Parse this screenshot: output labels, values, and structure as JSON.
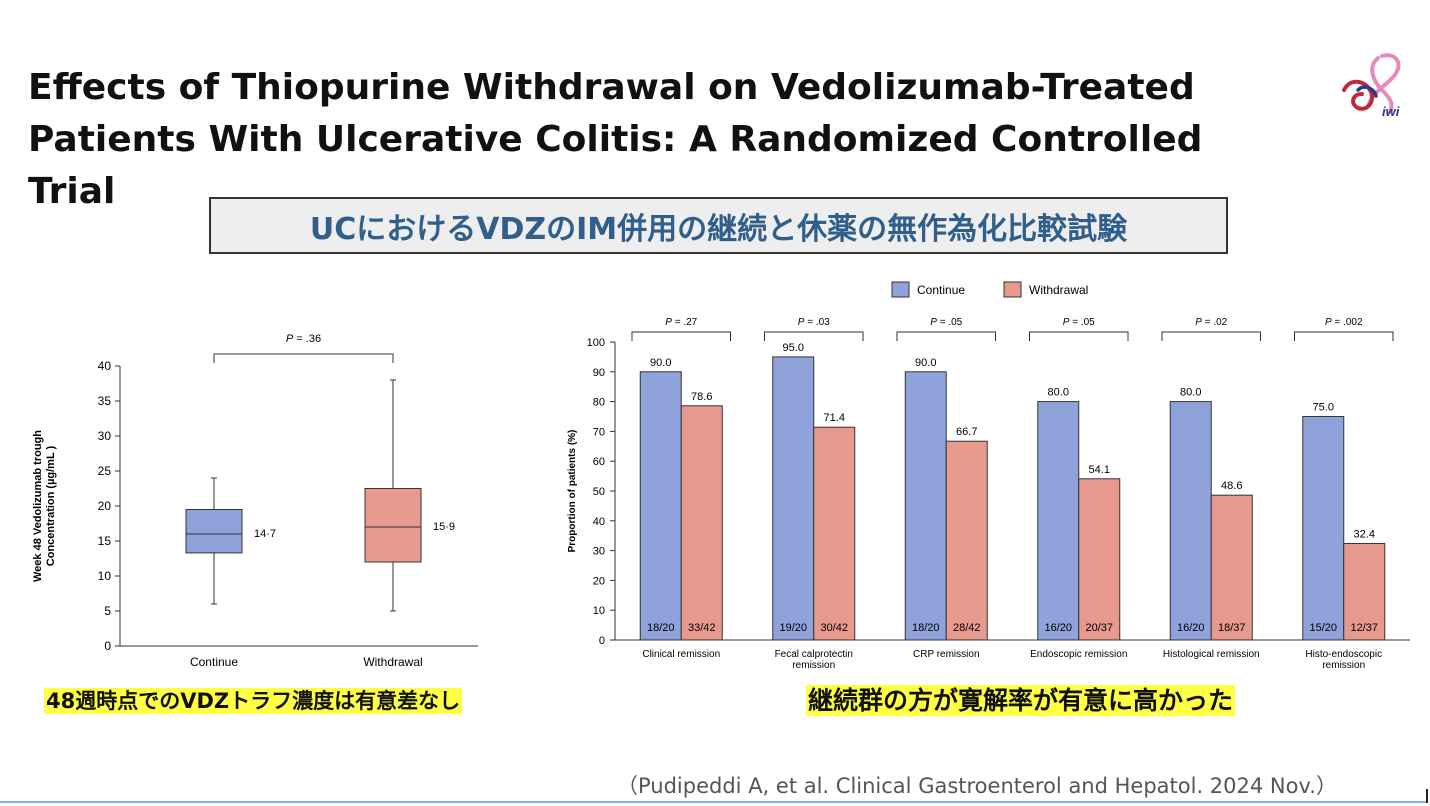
{
  "slide": {
    "title_line1": "Effects of Thiopurine Withdrawal on Vedolizumab-Treated",
    "title_line2": "Patients With Ulcerative Colitis: A Randomized Controlled Trial",
    "subtitle": "UCにおけるVDZのIM併用の継続と休薬の無作為化比較試験",
    "note_left": "48週時点でのVDZトラフ濃度は有意差なし",
    "note_right": "継続群の方が寛解率が有意に高かった",
    "citation": "（Pudipeddi A, et al. Clinical Gastroenterol and Hepatol. 2024 Nov.）",
    "logo": {
      "icon": "ribbon-logo-icon",
      "text": "iwi"
    }
  },
  "colors": {
    "continue": "#8fa3da",
    "withdrawal": "#e8998d",
    "subtitle_text": "#2f5f8a",
    "highlight": "#ffff44"
  },
  "chart_data": [
    {
      "type": "box",
      "ylabel_line1": "Week 48 Vedolizumab trough",
      "ylabel_line2": "Concentration (µg/mL )",
      "ylim": [
        0,
        40
      ],
      "yticks": [
        0,
        5,
        10,
        15,
        20,
        25,
        30,
        35,
        40
      ],
      "categories": [
        "Continue",
        "Withdrawal"
      ],
      "series": [
        {
          "name": "Continue",
          "min": 6,
          "q1": 13.3,
          "median": 16,
          "q3": 19.5,
          "max": 24,
          "label": "14·7"
        },
        {
          "name": "Withdrawal",
          "min": 5,
          "q1": 12,
          "median": 17,
          "q3": 22.5,
          "max": 38,
          "label": "15·9"
        }
      ],
      "p_value": "P = .36"
    },
    {
      "type": "bar",
      "ylabel": "Proportion of patients (%)",
      "ylim": [
        0,
        100
      ],
      "yticks": [
        0,
        10,
        20,
        30,
        40,
        50,
        60,
        70,
        80,
        90,
        100
      ],
      "legend": [
        "Continue",
        "Withdrawal"
      ],
      "legend_position": "top",
      "categories": [
        [
          "Clinical remission"
        ],
        [
          "Fecal calprotectin",
          "remission"
        ],
        [
          "CRP remission"
        ],
        [
          "Endoscopic remission"
        ],
        [
          "Histological remission"
        ],
        [
          "Histo-endoscopic",
          "remission"
        ]
      ],
      "series": [
        {
          "name": "Continue",
          "values": [
            90.0,
            95.0,
            90.0,
            80.0,
            80.0,
            75.0
          ],
          "labels": [
            "90.0",
            "95.0",
            "90.0",
            "80.0",
            "80.0",
            "75.0"
          ],
          "counts": [
            "18/20",
            "19/20",
            "18/20",
            "16/20",
            "16/20",
            "15/20"
          ]
        },
        {
          "name": "Withdrawal",
          "values": [
            78.6,
            71.4,
            66.7,
            54.1,
            48.6,
            32.4
          ],
          "labels": [
            "78.6",
            "71.4",
            "66.7",
            "54.1",
            "48.6",
            "32.4"
          ],
          "counts": [
            "33/42",
            "30/42",
            "28/42",
            "20/37",
            "18/37",
            "12/37"
          ]
        }
      ],
      "p_values": [
        "P = .27",
        "P = .03",
        "P = .05",
        "P = .05",
        "P = .02",
        "P = .002"
      ]
    }
  ]
}
